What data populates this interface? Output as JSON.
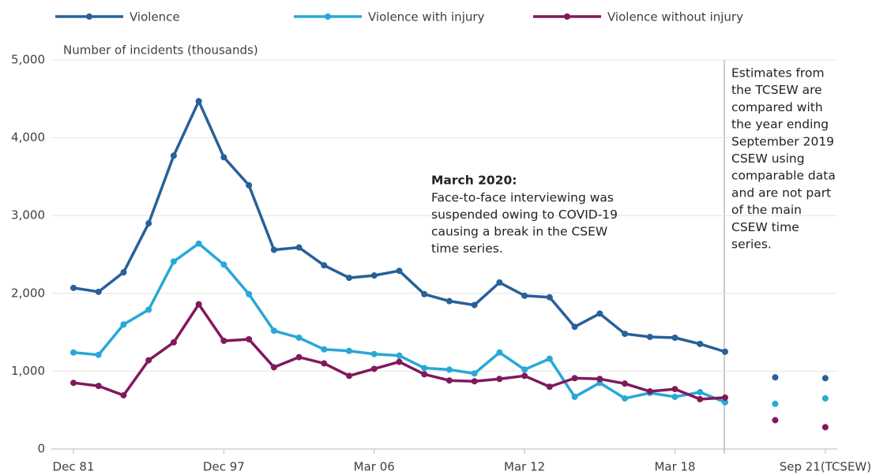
{
  "chart_data": {
    "type": "line",
    "y_axis_title": "Number of incidents (thousands)",
    "categories": [
      "Dec 81",
      null,
      null,
      null,
      null,
      null,
      "Dec 97",
      null,
      null,
      null,
      null,
      null,
      "Mar 06",
      null,
      null,
      null,
      null,
      null,
      "Mar 12",
      null,
      null,
      null,
      null,
      null,
      "Mar 18",
      null,
      null,
      null,
      null,
      null,
      "Sep 21(TCSEW)"
    ],
    "ylim": [
      0,
      5000
    ],
    "yticks": [
      0,
      {
        "value": 1000,
        "label": "1,000"
      },
      {
        "value": 2000,
        "label": "2,000"
      },
      {
        "value": 3000,
        "label": "3,000"
      },
      {
        "value": 4000,
        "label": "4,000"
      },
      {
        "value": 5000,
        "label": "5,000"
      }
    ],
    "grid": true,
    "series": [
      {
        "name": "Violence",
        "color": "#27609a",
        "values": [
          2070,
          2020,
          2270,
          2900,
          3770,
          4470,
          3750,
          3390,
          2560,
          2590,
          2360,
          2200,
          2230,
          2290,
          1990,
          1900,
          1850,
          2140,
          1970,
          1950,
          1570,
          1740,
          1480,
          1440,
          1430,
          1350,
          1250,
          null,
          920,
          null,
          910
        ]
      },
      {
        "name": "Violence with injury",
        "color": "#28a8d6",
        "values": [
          1240,
          1210,
          1600,
          1790,
          2410,
          2640,
          2370,
          1990,
          1520,
          1430,
          1280,
          1260,
          1220,
          1200,
          1040,
          1020,
          970,
          1240,
          1020,
          1160,
          670,
          850,
          650,
          720,
          670,
          730,
          600,
          null,
          580,
          null,
          650
        ]
      },
      {
        "name": "Violence without injury",
        "color": "#80195c",
        "values": [
          850,
          810,
          690,
          1140,
          1370,
          1860,
          1390,
          1410,
          1050,
          1180,
          1100,
          940,
          1030,
          1120,
          960,
          880,
          870,
          900,
          940,
          800,
          910,
          900,
          840,
          740,
          770,
          640,
          660,
          null,
          370,
          null,
          280
        ]
      }
    ],
    "annotations": [
      {
        "title": "March 2020:",
        "lines": [
          "Face-to-face interviewing was",
          "suspended owing to COVID-19",
          "causing a break in the CSEW",
          "time series."
        ]
      },
      {
        "lines": [
          "Estimates from",
          "the TCSEW are",
          "compared with",
          "the year ending",
          "September 2019",
          "CSEW using",
          "comparable data",
          "and are not part",
          "of the main",
          "CSEW time",
          "series."
        ]
      }
    ]
  }
}
